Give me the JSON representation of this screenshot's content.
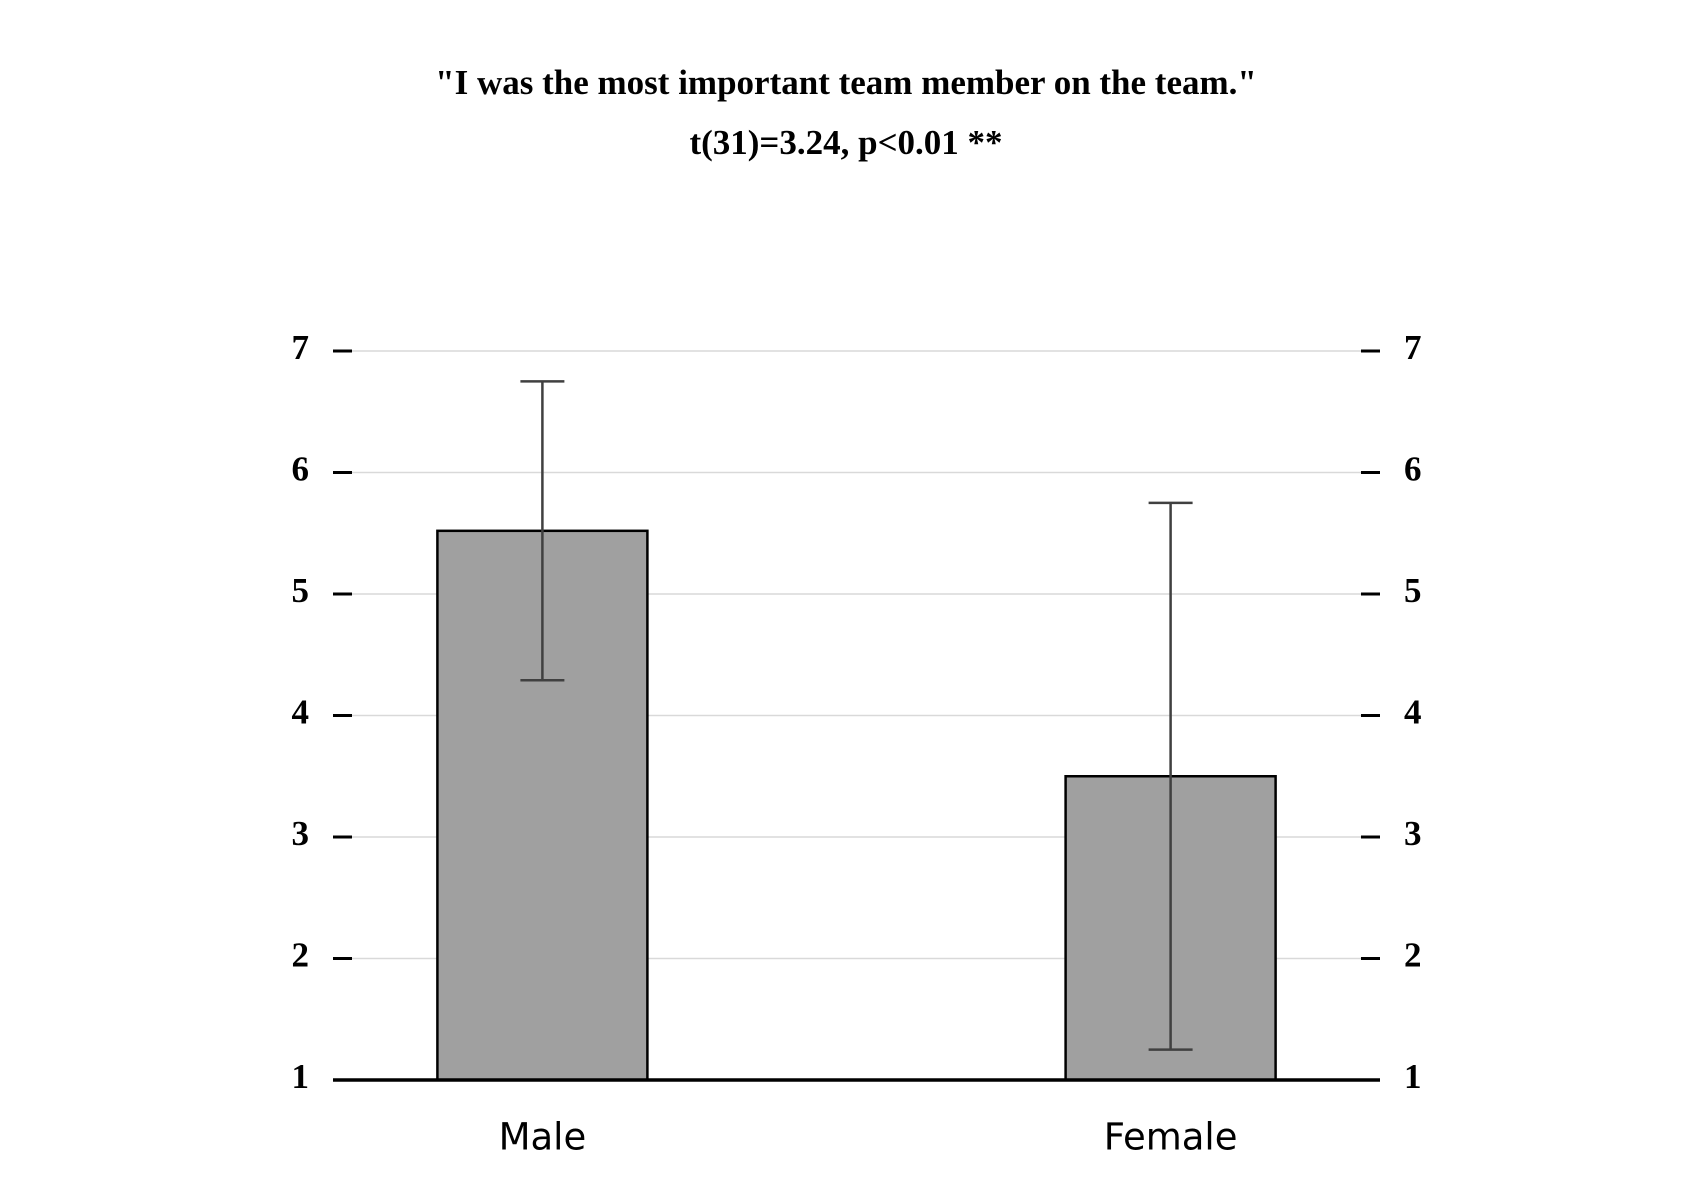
{
  "chart_data": {
    "type": "bar",
    "title": "\"I was the most important team member on the team.\"",
    "subtitle": "t(31)=3.24, p<0.01 **",
    "categories": [
      "Male",
      "Female"
    ],
    "values": [
      5.52,
      3.5
    ],
    "errors": [
      1.23,
      2.25
    ],
    "color": "#a0a0a0",
    "ylim": [
      1,
      7
    ],
    "yticks": [
      1,
      2,
      3,
      4,
      5,
      6,
      7
    ],
    "y2lim": [
      1,
      7
    ],
    "y2ticks": [
      1,
      2,
      3,
      4,
      5,
      6,
      7
    ],
    "grid": true
  }
}
